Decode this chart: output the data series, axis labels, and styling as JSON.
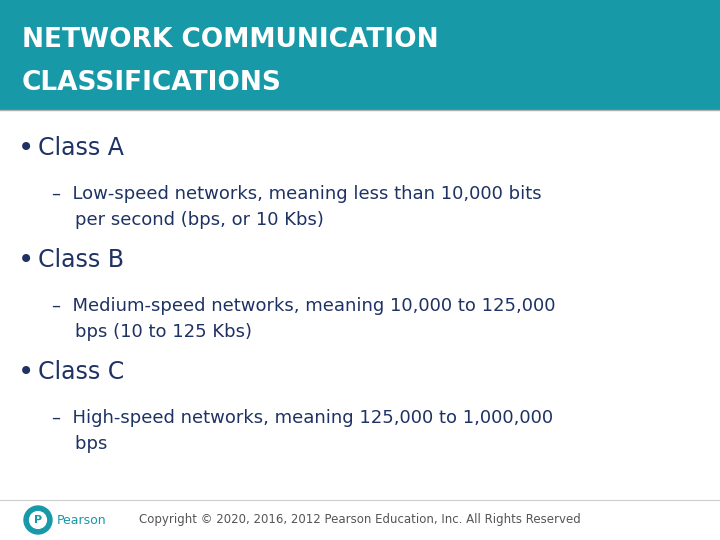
{
  "title_line1": "NETWORK COMMUNICATION",
  "title_line2": "CLASSIFICATIONS",
  "title_bg_color": "#1899a8",
  "title_text_color": "#ffffff",
  "title_fontsize": 19,
  "body_bg_color": "#ffffff",
  "bullet_color": "#1e3264",
  "bullet_text_color": "#1e3264",
  "sub_text_color": "#1e3264",
  "bullet_fontsize": 17,
  "sub_fontsize": 13,
  "footer_text": "Copyright © 2020, 2016, 2012 Pearson Education, Inc. All Rights Reserved",
  "footer_color": "#555555",
  "footer_fontsize": 8.5,
  "pearson_color": "#1899a8",
  "bullets": [
    {
      "label": "Class A",
      "sub": "–  Low-speed networks, meaning less than 10,000 bits\n    per second (bps, or 10 Kbs)"
    },
    {
      "label": "Class B",
      "sub": "–  Medium-speed networks, meaning 10,000 to 125,000\n    bps (10 to 125 Kbs)"
    },
    {
      "label": "Class C",
      "sub": "–  High-speed networks, meaning 125,000 to 1,000,000\n    bps"
    }
  ]
}
